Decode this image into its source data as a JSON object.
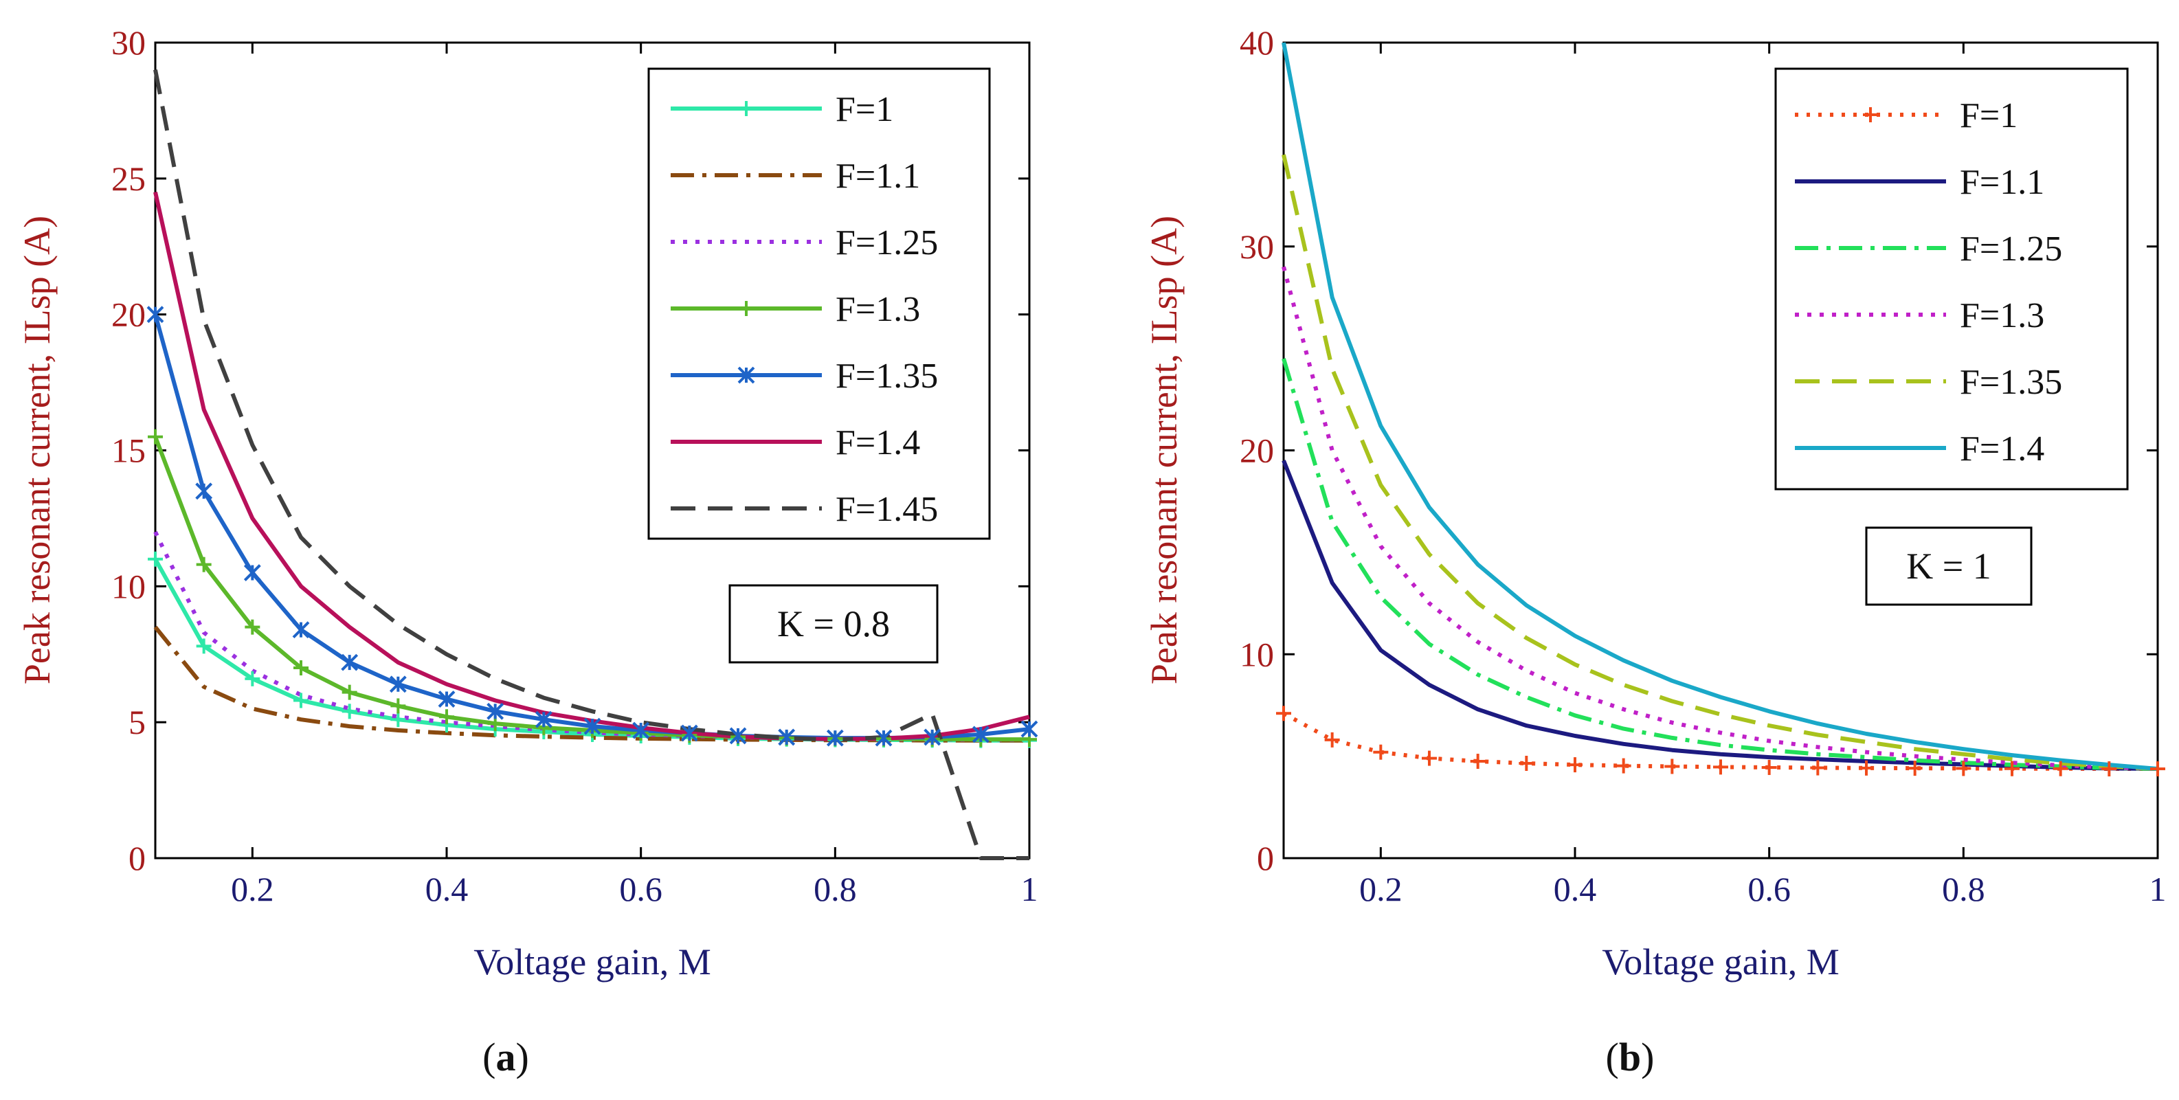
{
  "chart_data": [
    {
      "id": "a",
      "type": "line",
      "caption_label": "a",
      "xlabel": "Voltage gain, M",
      "ylabel": "Peak resonant current, ILsp (A)",
      "xlim": [
        0.1,
        1.0
      ],
      "ylim": [
        0,
        30
      ],
      "xticks": [
        0.2,
        0.4,
        0.6,
        0.8,
        1
      ],
      "xtick_labels": [
        "0.2",
        "0.4",
        "0.6",
        "0.8",
        "1"
      ],
      "yticks": [
        0,
        5,
        10,
        15,
        20,
        25,
        30
      ],
      "ytick_labels": [
        "0",
        "5",
        "10",
        "15",
        "20",
        "25",
        "30"
      ],
      "annotation": "K = 0.8",
      "legend_position": "top-right",
      "x": [
        0.1,
        0.15,
        0.2,
        0.25,
        0.3,
        0.35,
        0.4,
        0.45,
        0.5,
        0.55,
        0.6,
        0.65,
        0.7,
        0.75,
        0.8,
        0.85,
        0.9,
        0.95,
        1.0
      ],
      "series": [
        {
          "name": "F=1",
          "color": "#2ee8a8",
          "dash": "",
          "marker": "plus",
          "values": [
            11,
            7.8,
            6.6,
            5.8,
            5.4,
            5.1,
            4.9,
            4.75,
            4.65,
            4.55,
            4.5,
            4.45,
            4.4,
            4.38,
            4.36,
            4.35,
            4.34,
            4.33,
            4.33
          ]
        },
        {
          "name": "F=1.1",
          "color": "#8a4a10",
          "dash": "34,12,6,12",
          "marker": "",
          "values": [
            8.5,
            6.3,
            5.5,
            5.1,
            4.85,
            4.7,
            4.6,
            4.52,
            4.47,
            4.43,
            4.4,
            4.38,
            4.36,
            4.35,
            4.34,
            4.34,
            4.33,
            4.33,
            4.33
          ]
        },
        {
          "name": "F=1.25",
          "color": "#9b30e0",
          "dash": "6,12",
          "marker": "",
          "values": [
            12,
            8.3,
            6.9,
            6.0,
            5.5,
            5.2,
            5.0,
            4.85,
            4.72,
            4.62,
            4.55,
            4.5,
            4.45,
            4.42,
            4.4,
            4.38,
            4.37,
            4.36,
            4.36
          ]
        },
        {
          "name": "F=1.3",
          "color": "#5cb82a",
          "dash": "",
          "marker": "plus",
          "values": [
            15.5,
            10.8,
            8.5,
            7.0,
            6.1,
            5.6,
            5.2,
            4.95,
            4.8,
            4.7,
            4.6,
            4.52,
            4.46,
            4.42,
            4.4,
            4.39,
            4.38,
            4.37,
            4.37
          ]
        },
        {
          "name": "F=1.35",
          "color": "#1e64c8",
          "dash": "",
          "marker": "star",
          "values": [
            20,
            13.5,
            10.5,
            8.4,
            7.2,
            6.4,
            5.85,
            5.4,
            5.1,
            4.85,
            4.7,
            4.6,
            4.5,
            4.45,
            4.42,
            4.42,
            4.45,
            4.55,
            4.75
          ]
        },
        {
          "name": "F=1.4",
          "color": "#b8105a",
          "dash": "",
          "marker": "",
          "values": [
            24.5,
            16.5,
            12.5,
            10.0,
            8.5,
            7.2,
            6.4,
            5.8,
            5.35,
            5.05,
            4.8,
            4.6,
            4.47,
            4.4,
            4.38,
            4.4,
            4.5,
            4.75,
            5.2
          ]
        },
        {
          "name": "F=1.45",
          "color": "#404040",
          "dash": "36,18",
          "marker": "",
          "values": [
            29,
            19.8,
            15.2,
            11.8,
            10.0,
            8.6,
            7.5,
            6.6,
            5.9,
            5.4,
            5.0,
            4.75,
            4.55,
            4.42,
            4.35,
            4.45,
            5.3,
            0,
            0
          ]
        }
      ]
    },
    {
      "id": "b",
      "type": "line",
      "caption_label": "b",
      "xlabel": "Voltage gain, M",
      "ylabel": "Peak resonant current, ILsp (A)",
      "xlim": [
        0.1,
        1.0
      ],
      "ylim": [
        0,
        40
      ],
      "xticks": [
        0.2,
        0.4,
        0.6,
        0.8,
        1
      ],
      "xtick_labels": [
        "0.2",
        "0.4",
        "0.6",
        "0.8",
        "1"
      ],
      "yticks": [
        0,
        10,
        20,
        30,
        40
      ],
      "ytick_labels": [
        "0",
        "10",
        "20",
        "30",
        "40"
      ],
      "annotation": "K = 1",
      "legend_position": "top-right",
      "x": [
        0.1,
        0.15,
        0.2,
        0.25,
        0.3,
        0.35,
        0.4,
        0.45,
        0.5,
        0.55,
        0.6,
        0.65,
        0.7,
        0.75,
        0.8,
        0.85,
        0.9,
        0.95,
        1.0
      ],
      "series": [
        {
          "name": "F=1",
          "color": "#f04a1a",
          "dash": "5,12",
          "marker": "plus",
          "values": [
            7.1,
            5.8,
            5.2,
            4.9,
            4.75,
            4.65,
            4.58,
            4.53,
            4.5,
            4.47,
            4.45,
            4.43,
            4.42,
            4.41,
            4.4,
            4.39,
            4.39,
            4.38,
            4.38
          ]
        },
        {
          "name": "F=1.1",
          "color": "#1c1a80",
          "dash": "",
          "marker": "",
          "values": [
            19.5,
            13.5,
            10.2,
            8.5,
            7.3,
            6.5,
            6.0,
            5.6,
            5.3,
            5.1,
            4.95,
            4.85,
            4.75,
            4.67,
            4.6,
            4.52,
            4.45,
            4.4,
            4.38
          ]
        },
        {
          "name": "F=1.25",
          "color": "#22e05a",
          "dash": "34,12,6,12",
          "marker": "",
          "values": [
            24.5,
            16.5,
            12.8,
            10.5,
            9.0,
            7.9,
            7.0,
            6.35,
            5.9,
            5.55,
            5.3,
            5.1,
            4.95,
            4.8,
            4.68,
            4.58,
            4.5,
            4.42,
            4.38
          ]
        },
        {
          "name": "F=1.3",
          "color": "#c020c8",
          "dash": "6,12",
          "marker": "",
          "values": [
            29,
            20,
            15.3,
            12.5,
            10.6,
            9.2,
            8.1,
            7.3,
            6.65,
            6.15,
            5.75,
            5.45,
            5.2,
            5.0,
            4.83,
            4.68,
            4.55,
            4.45,
            4.38
          ]
        },
        {
          "name": "F=1.35",
          "color": "#a8c21c",
          "dash": "36,18",
          "marker": "",
          "values": [
            34.5,
            24,
            18.3,
            14.9,
            12.5,
            10.8,
            9.5,
            8.5,
            7.7,
            7.05,
            6.5,
            6.05,
            5.7,
            5.35,
            5.1,
            4.85,
            4.65,
            4.5,
            4.38
          ]
        },
        {
          "name": "F=1.4",
          "color": "#1aa8c8",
          "dash": "",
          "marker": "",
          "values": [
            40,
            27.5,
            21.2,
            17.2,
            14.4,
            12.4,
            10.9,
            9.7,
            8.7,
            7.9,
            7.2,
            6.6,
            6.1,
            5.7,
            5.35,
            5.05,
            4.8,
            4.58,
            4.38
          ]
        }
      ]
    }
  ]
}
